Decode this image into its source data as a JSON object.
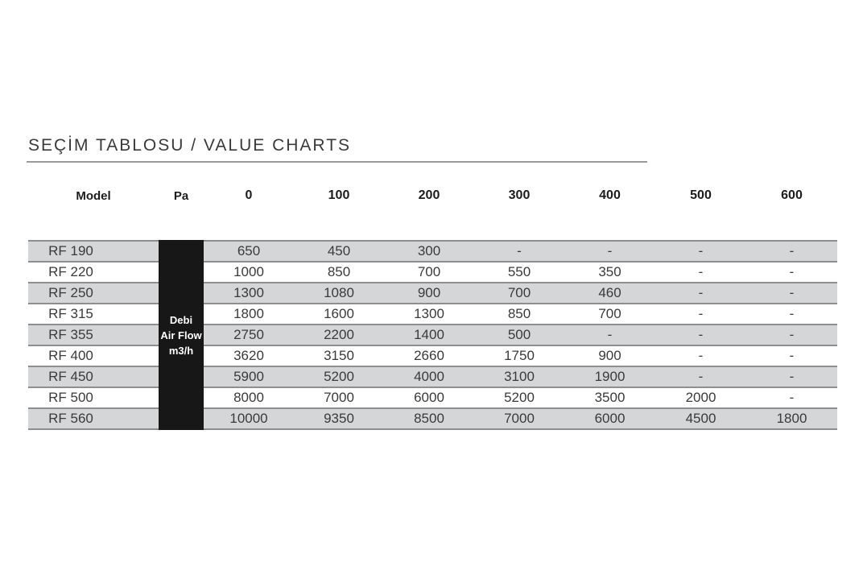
{
  "title": "SEÇİM TABLOSU / VALUE CHARTS",
  "table": {
    "headers": [
      "Model",
      "Pa",
      "0",
      "100",
      "200",
      "300",
      "400",
      "500",
      "600"
    ],
    "pa_block": {
      "lines": [
        "Debi",
        "Air Flow",
        "m3/h"
      ]
    },
    "rows": [
      {
        "model": "RF 190",
        "values": [
          "650",
          "450",
          "300",
          "-",
          "-",
          "-",
          "-"
        ]
      },
      {
        "model": "RF 220",
        "values": [
          "1000",
          "850",
          "700",
          "550",
          "350",
          "-",
          "-"
        ]
      },
      {
        "model": "RF 250",
        "values": [
          "1300",
          "1080",
          "900",
          "700",
          "460",
          "-",
          "-"
        ]
      },
      {
        "model": "RF 315",
        "values": [
          "1800",
          "1600",
          "1300",
          "850",
          "700",
          "-",
          "-"
        ]
      },
      {
        "model": "RF 355",
        "values": [
          "2750",
          "2200",
          "1400",
          "500",
          "-",
          "-",
          "-"
        ]
      },
      {
        "model": "RF 400",
        "values": [
          "3620",
          "3150",
          "2660",
          "1750",
          "900",
          "-",
          "-"
        ]
      },
      {
        "model": "RF 450",
        "values": [
          "5900",
          "5200",
          "4000",
          "3100",
          "1900",
          "-",
          "-"
        ]
      },
      {
        "model": "RF 500",
        "values": [
          "8000",
          "7000",
          "6000",
          "5200",
          "3500",
          "2000",
          "-"
        ]
      },
      {
        "model": "RF 560",
        "values": [
          "10000",
          "9350",
          "8500",
          "7000",
          "6000",
          "4500",
          "1800"
        ]
      }
    ]
  },
  "chart_data": {
    "type": "table",
    "title": "SEÇİM TABLOSU / VALUE CHARTS",
    "x_header": "Pa",
    "pa_columns": [
      0,
      100,
      200,
      300,
      400,
      500,
      600
    ],
    "unit": "Debi / Air Flow m3/h",
    "series": [
      {
        "name": "RF 190",
        "values": [
          650,
          450,
          300,
          null,
          null,
          null,
          null
        ]
      },
      {
        "name": "RF 220",
        "values": [
          1000,
          850,
          700,
          550,
          350,
          null,
          null
        ]
      },
      {
        "name": "RF 250",
        "values": [
          1300,
          1080,
          900,
          700,
          460,
          null,
          null
        ]
      },
      {
        "name": "RF 315",
        "values": [
          1800,
          1600,
          1300,
          850,
          700,
          null,
          null
        ]
      },
      {
        "name": "RF 355",
        "values": [
          2750,
          2200,
          1400,
          500,
          null,
          null,
          null
        ]
      },
      {
        "name": "RF 400",
        "values": [
          3620,
          3150,
          2660,
          1750,
          900,
          null,
          null
        ]
      },
      {
        "name": "RF 450",
        "values": [
          5900,
          5200,
          4000,
          3100,
          1900,
          null,
          null
        ]
      },
      {
        "name": "RF 500",
        "values": [
          8000,
          7000,
          6000,
          5200,
          3500,
          2000,
          null
        ]
      },
      {
        "name": "RF 560",
        "values": [
          10000,
          9350,
          8500,
          7000,
          6000,
          4500,
          1800
        ]
      }
    ]
  },
  "colors": {
    "row_stripe": "#d5d6d8",
    "grid_line": "#8d8e90",
    "pa_block_bg": "#171717",
    "pa_block_text": "#ffffff",
    "body_text": "#3a3a3a",
    "header_text": "#1c1c1c",
    "title_text": "#3a3a3a",
    "title_rule": "#9b9b9b"
  }
}
